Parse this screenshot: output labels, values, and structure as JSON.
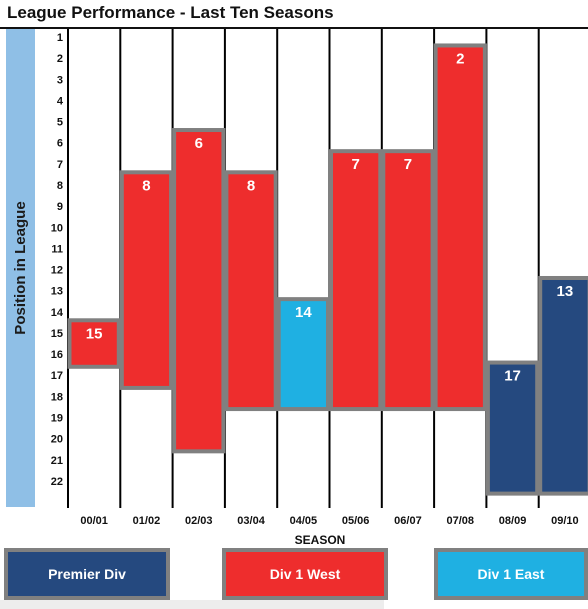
{
  "chart_data": {
    "type": "bar",
    "title": "League Performance - Last Ten Seasons",
    "xlabel": "SEASON",
    "ylabel": "Position in League",
    "y_ticks": [
      "1",
      "2",
      "3",
      "4",
      "5",
      "6",
      "7",
      "8",
      "9",
      "10",
      "11",
      "12",
      "13",
      "14",
      "15",
      "16",
      "17",
      "18",
      "19",
      "20",
      "21",
      "22"
    ],
    "ylim": [
      1,
      22
    ],
    "y_inverted": true,
    "categories": [
      "00/01",
      "01/02",
      "02/03",
      "03/04",
      "04/05",
      "05/06",
      "06/07",
      "07/08",
      "08/09",
      "09/10"
    ],
    "values": [
      15,
      8,
      6,
      8,
      14,
      7,
      7,
      2,
      17,
      13
    ],
    "bar_bottoms": [
      16.6,
      17.6,
      20.6,
      18.6,
      18.6,
      18.6,
      18.6,
      18.6,
      22.6,
      22.6
    ],
    "divisions": [
      "Div 1 West",
      "Div 1 West",
      "Div 1 West",
      "Div 1 West",
      "Div 1 East",
      "Div 1 West",
      "Div 1 West",
      "Div 1 West",
      "Premier Div",
      "Premier Div"
    ],
    "legend": [
      {
        "label": "Premier Div",
        "color": "#25497f"
      },
      {
        "label": "Div 1 West",
        "color": "#ee2d2d"
      },
      {
        "label": "Div 1 East",
        "color": "#1fb0e2"
      }
    ],
    "bar_border_color": "#808080",
    "grid": "vertical"
  }
}
